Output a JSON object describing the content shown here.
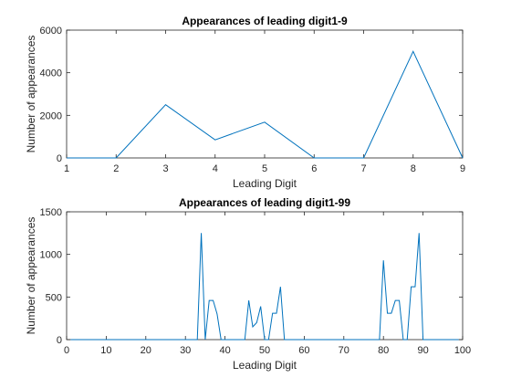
{
  "chart_data": [
    {
      "type": "line",
      "title": "Appearances of leading digit1-9",
      "xlabel": "Leading Digit",
      "ylabel": "Number of appearances",
      "xlim": [
        1,
        9
      ],
      "ylim": [
        0,
        6000
      ],
      "x_ticks": [
        "1",
        "2",
        "3",
        "4",
        "5",
        "6",
        "7",
        "8",
        "9"
      ],
      "y_ticks": [
        "0",
        "2000",
        "4000",
        "6000"
      ],
      "grid": false,
      "series_color": "#0072BD",
      "x": [
        1,
        2,
        3,
        4,
        5,
        6,
        7,
        8,
        9
      ],
      "y": [
        0,
        0,
        2500,
        850,
        1680,
        0,
        0,
        5000,
        0
      ]
    },
    {
      "type": "line",
      "title": "Appearances of leading digit1-99",
      "xlabel": "Leading Digit",
      "ylabel": "Number of appearances",
      "xlim": [
        0,
        100
      ],
      "ylim": [
        0,
        1500
      ],
      "x_ticks": [
        "0",
        "10",
        "20",
        "30",
        "40",
        "50",
        "60",
        "70",
        "80",
        "90",
        "100"
      ],
      "y_ticks": [
        "0",
        "500",
        "1000",
        "1500"
      ],
      "grid": false,
      "series_color": "#0072BD",
      "x": [
        1,
        33,
        34,
        35,
        36,
        37,
        38,
        39,
        45,
        46,
        47,
        48,
        49,
        50,
        51,
        52,
        53,
        54,
        55,
        56,
        57,
        78,
        79,
        80,
        81,
        82,
        83,
        84,
        85,
        86,
        87,
        88,
        89,
        90,
        99
      ],
      "y": [
        0,
        0,
        1250,
        0,
        460,
        460,
        300,
        0,
        0,
        460,
        150,
        200,
        390,
        0,
        0,
        310,
        310,
        620,
        0,
        0,
        0,
        0,
        0,
        930,
        310,
        310,
        460,
        460,
        0,
        0,
        620,
        620,
        1250,
        0,
        0
      ]
    }
  ]
}
